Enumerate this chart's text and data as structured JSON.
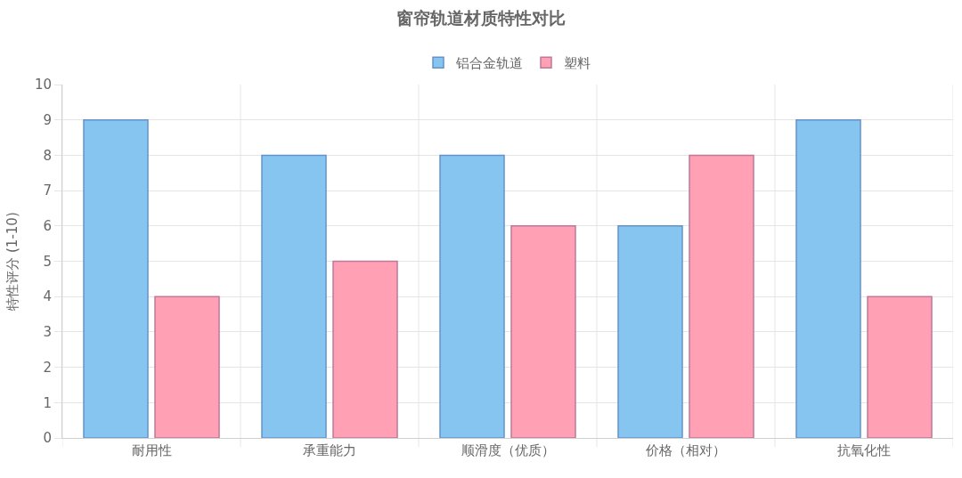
{
  "chart_data": {
    "type": "bar",
    "title": "窗帘轨道材质特性对比",
    "ylabel": "特性评分 (1-10)",
    "categories": [
      "耐用性",
      "承重能力",
      "顺滑度（优质）",
      "价格（相对）",
      "抗氧化性"
    ],
    "series": [
      {
        "name": "铝合金轨道",
        "color": "#86c5f0",
        "values": [
          9,
          8,
          8,
          6,
          9
        ]
      },
      {
        "name": "塑料",
        "color": "#ffa0b4",
        "values": [
          4,
          5,
          6,
          8,
          4
        ]
      }
    ],
    "ylim": [
      0,
      10
    ],
    "yticks": [
      0,
      1,
      2,
      3,
      4,
      5,
      6,
      7,
      8,
      9,
      10
    ],
    "grid": true,
    "legend": "top"
  }
}
